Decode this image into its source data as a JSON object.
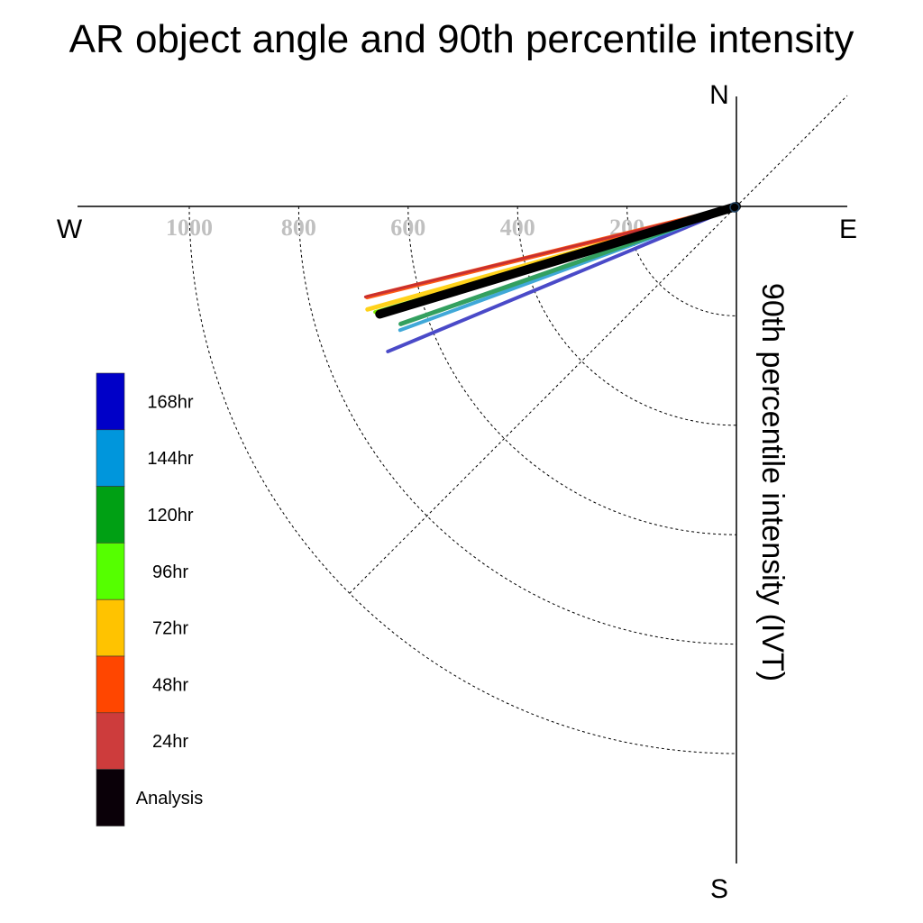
{
  "chart_data": {
    "type": "polar-vector",
    "title": "AR object angle and 90th percentile intensity",
    "ylabel": "90th percentile intensity (IVT)",
    "compass": {
      "north": "N",
      "south": "S",
      "west": "W",
      "east": "E"
    },
    "radial_ticks": [
      "200",
      "400",
      "600",
      "800",
      "1000"
    ],
    "radial_grid": [
      200,
      400,
      600,
      800,
      1000
    ],
    "diagonal_grid": true,
    "legend": {
      "placement": "left",
      "entries": [
        {
          "label": "168hr",
          "color": "#0000c8"
        },
        {
          "label": "144hr",
          "color": "#0096dc"
        },
        {
          "label": "120hr",
          "color": "#00a014"
        },
        {
          "label": "96hr",
          "color": "#55ff00"
        },
        {
          "label": "72hr",
          "color": "#ffc300"
        },
        {
          "label": "48hr",
          "color": "#ff4600"
        },
        {
          "label": "24hr",
          "color": "#cd3c3c"
        },
        {
          "label": "Analysis",
          "color": "#0a0008"
        }
      ]
    },
    "series": [
      {
        "name": "168hr",
        "angle_deg_below_west": 22.6,
        "intensity": 690,
        "color": "#4a4ac8",
        "width": 4
      },
      {
        "name": "144hr",
        "angle_deg_below_west": 20.2,
        "intensity": 655,
        "color": "#40a8d8",
        "width": 4
      },
      {
        "name": "120hr",
        "angle_deg_below_west": 19.3,
        "intensity": 650,
        "color": "#33a060",
        "width": 5
      },
      {
        "name": "96hr",
        "angle_deg_below_west": 16.3,
        "intensity": 688,
        "color": "#7df000",
        "width": 4
      },
      {
        "name": "72hr",
        "angle_deg_below_west": 15.6,
        "intensity": 700,
        "color": "#ffd21a",
        "width": 5
      },
      {
        "name": "48hr",
        "angle_deg_below_west": 13.8,
        "intensity": 695,
        "color": "#ff5a14",
        "width": 5
      },
      {
        "name": "24hr",
        "angle_deg_below_west": 13.7,
        "intensity": 698,
        "color": "#c83030",
        "width": 3
      },
      {
        "name": "Analysis",
        "angle_deg_below_west": 16.8,
        "intensity": 681,
        "color": "#000000",
        "width": 10
      }
    ]
  }
}
